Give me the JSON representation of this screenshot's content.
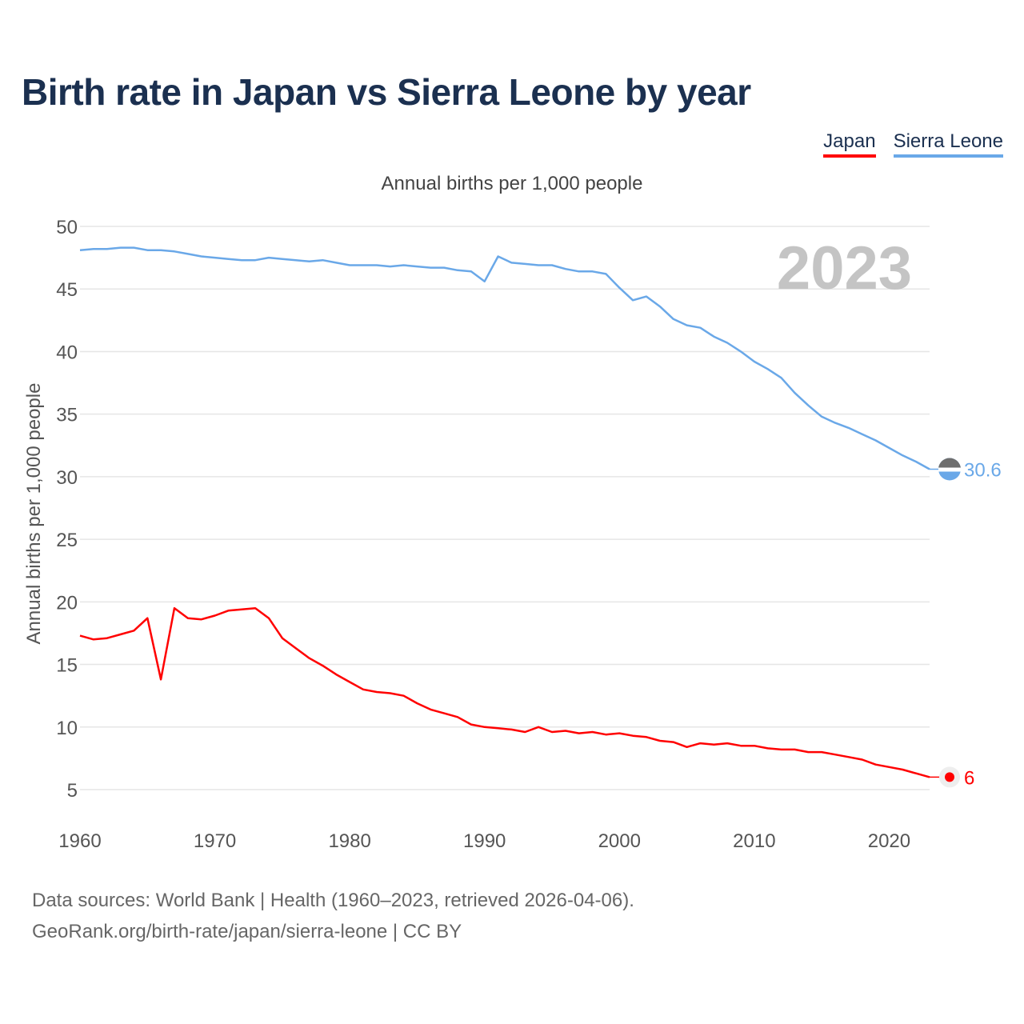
{
  "title": "Birth rate in Japan vs Sierra Leone by year",
  "legend": {
    "japan": "Japan",
    "sierra_leone": "Sierra Leone"
  },
  "subtitle": "Annual births per 1,000 people",
  "footer": {
    "line1": "Data sources: World Bank | Health (1960–2023, retrieved 2026-04-06).",
    "line2": "GeoRank.org/birth-rate/japan/sierra-leone | CC BY"
  },
  "chart_data": {
    "type": "line",
    "title": "Birth rate in Japan vs Sierra Leone by year",
    "xlabel": "",
    "ylabel": "Annual births per 1,000 people",
    "year_label": "2023",
    "xlim": [
      1960,
      2023
    ],
    "ylim": [
      5,
      50
    ],
    "x_ticks": [
      1960,
      1970,
      1980,
      1990,
      2000,
      2010,
      2020
    ],
    "y_ticks": [
      5,
      10,
      15,
      20,
      25,
      30,
      35,
      40,
      45,
      50
    ],
    "grid": true,
    "legend_position": "top-right",
    "x": [
      1960,
      1961,
      1962,
      1963,
      1964,
      1965,
      1966,
      1967,
      1968,
      1969,
      1970,
      1971,
      1972,
      1973,
      1974,
      1975,
      1976,
      1977,
      1978,
      1979,
      1980,
      1981,
      1982,
      1983,
      1984,
      1985,
      1986,
      1987,
      1988,
      1989,
      1990,
      1991,
      1992,
      1993,
      1994,
      1995,
      1996,
      1997,
      1998,
      1999,
      2000,
      2001,
      2002,
      2003,
      2004,
      2005,
      2006,
      2007,
      2008,
      2009,
      2010,
      2011,
      2012,
      2013,
      2014,
      2015,
      2016,
      2017,
      2018,
      2019,
      2020,
      2021,
      2022,
      2023
    ],
    "series": [
      {
        "name": "Japan",
        "color": "#ff0000",
        "end_label": "6",
        "values": [
          17.3,
          17.0,
          17.1,
          17.4,
          17.7,
          18.7,
          13.8,
          19.5,
          18.7,
          18.6,
          18.9,
          19.3,
          19.4,
          19.5,
          18.7,
          17.1,
          16.3,
          15.5,
          14.9,
          14.2,
          13.6,
          13.0,
          12.8,
          12.7,
          12.5,
          11.9,
          11.4,
          11.1,
          10.8,
          10.2,
          10.0,
          9.9,
          9.8,
          9.6,
          10.0,
          9.6,
          9.7,
          9.5,
          9.6,
          9.4,
          9.5,
          9.3,
          9.2,
          8.9,
          8.8,
          8.4,
          8.7,
          8.6,
          8.7,
          8.5,
          8.5,
          8.3,
          8.2,
          8.2,
          8.0,
          8.0,
          7.8,
          7.6,
          7.4,
          7.0,
          6.8,
          6.6,
          6.3,
          6.0
        ]
      },
      {
        "name": "Sierra Leone",
        "color": "#6aa8e8",
        "end_label": "30.6",
        "values": [
          48.1,
          48.2,
          48.2,
          48.3,
          48.3,
          48.1,
          48.1,
          48.0,
          47.8,
          47.6,
          47.5,
          47.4,
          47.3,
          47.3,
          47.5,
          47.4,
          47.3,
          47.2,
          47.3,
          47.1,
          46.9,
          46.9,
          46.9,
          46.8,
          46.9,
          46.8,
          46.7,
          46.7,
          46.5,
          46.4,
          45.6,
          47.6,
          47.1,
          47.0,
          46.9,
          46.9,
          46.6,
          46.4,
          46.4,
          46.2,
          45.1,
          44.1,
          44.4,
          43.6,
          42.6,
          42.1,
          41.9,
          41.2,
          40.7,
          40.0,
          39.2,
          38.6,
          37.9,
          36.7,
          35.7,
          34.8,
          34.3,
          33.9,
          33.4,
          32.9,
          32.3,
          31.7,
          31.2,
          30.6
        ]
      }
    ]
  }
}
